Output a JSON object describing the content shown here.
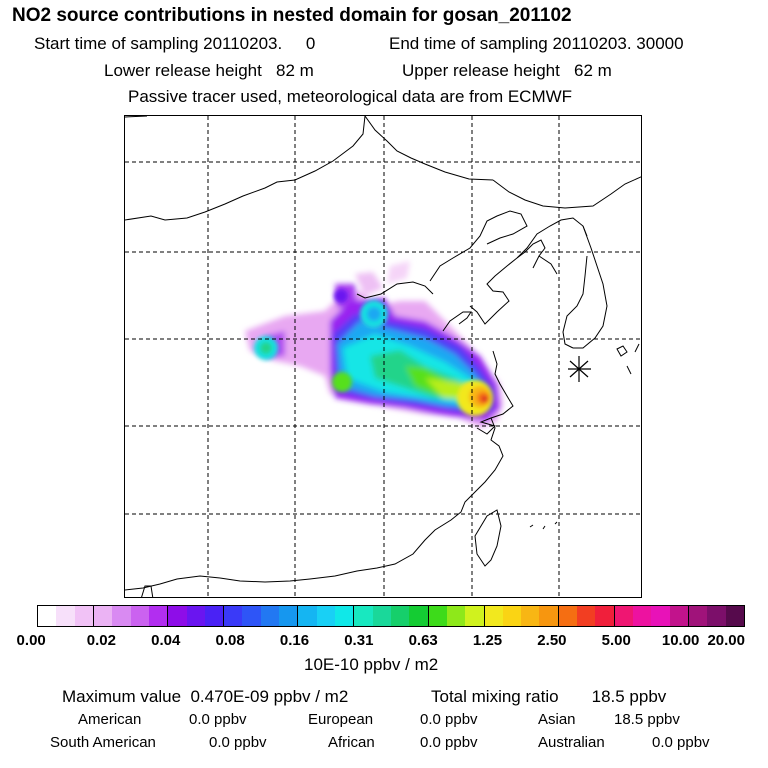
{
  "header": {
    "title": "NO2 source contributions in nested domain for gosan_201102",
    "start_time": "Start time of sampling 20110203.     0",
    "end_time": "End time of sampling 20110203. 30000",
    "lower_release": "Lower release height   82 m",
    "upper_release": "Upper release height   62 m",
    "tracer_note": "Passive tracer used, meteorological data are from ECMWF"
  },
  "map": {
    "region": "East Asia (eastern China, Korea, Taiwan)",
    "receptor_marker": "asterisk-icon"
  },
  "colorbar": {
    "colors": [
      "#ffffff",
      "#f7e0fa",
      "#f1c2f6",
      "#ebb3f4",
      "#d98af2",
      "#cb62f0",
      "#b22ef0",
      "#8e0de8",
      "#6a15f0",
      "#4a22f5",
      "#3a3af8",
      "#2e55f7",
      "#2278f2",
      "#1697ef",
      "#15b5f2",
      "#19d0f5",
      "#10e8e8",
      "#18e8c0",
      "#1ad89a",
      "#16cf6b",
      "#14cc33",
      "#3ddb1a",
      "#8ee81a",
      "#d0f21e",
      "#f2e81e",
      "#fad414",
      "#f8b614",
      "#f7960f",
      "#f56e12",
      "#f23e22",
      "#f01f3b",
      "#ef1672",
      "#ed12a0",
      "#e812b8",
      "#c2138c",
      "#a0137a",
      "#7c0f6a",
      "#560a4c"
    ],
    "ticks": [
      "0.00",
      "0.02",
      "0.04",
      "0.08",
      "0.16",
      "0.31",
      "0.63",
      "1.25",
      "2.50",
      "5.00",
      "10.00",
      "20.00"
    ],
    "unit": "10E-10 ppbv / m2"
  },
  "summary": {
    "max_value": "Maximum value  0.470E-09 ppbv / m2",
    "total": "Total mixing ratio       18.5 ppbv",
    "regions": [
      {
        "label": "American",
        "value": "0.0 ppbv"
      },
      {
        "label": "European",
        "value": "0.0 ppbv"
      },
      {
        "label": "Asian",
        "value": "18.5 ppbv"
      },
      {
        "label": "South American",
        "value": "0.0 ppbv"
      },
      {
        "label": "African",
        "value": "0.0 ppbv"
      },
      {
        "label": "Australian",
        "value": "0.0 ppbv"
      }
    ]
  }
}
